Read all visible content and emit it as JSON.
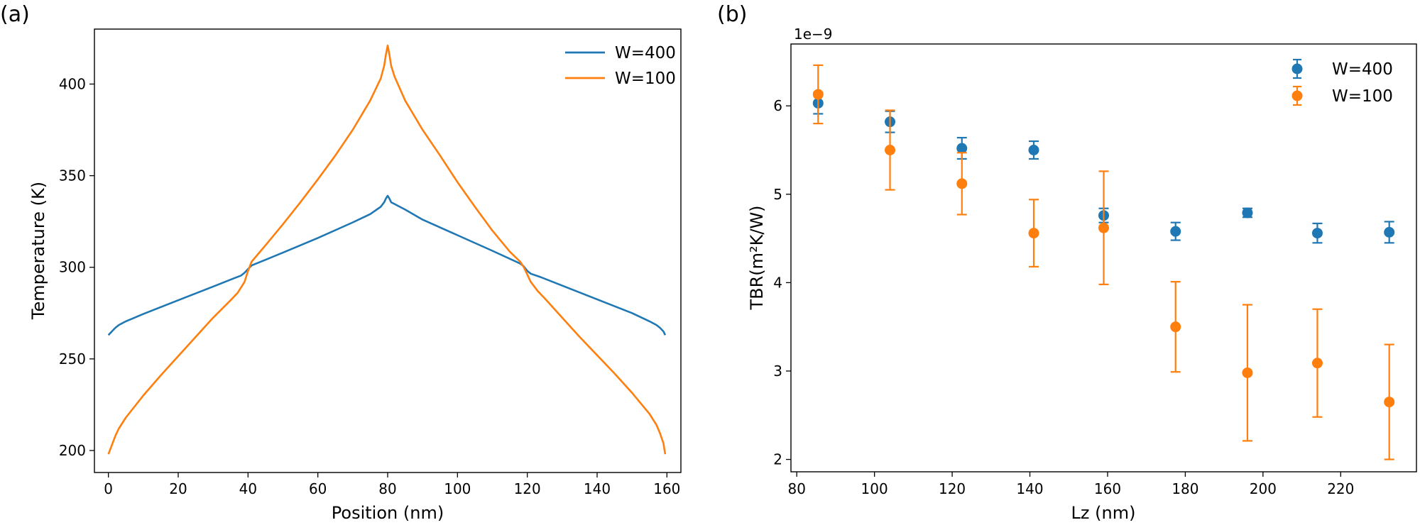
{
  "chart_data": [
    {
      "panel_label": "(a)",
      "type": "line",
      "xlabel": "Position (nm)",
      "ylabel": "Temperature (K)",
      "xlim": [
        -4,
        164
      ],
      "ylim": [
        188,
        430
      ],
      "xticks": [
        0,
        20,
        40,
        60,
        80,
        100,
        120,
        140,
        160
      ],
      "yticks": [
        200,
        250,
        300,
        350,
        400
      ],
      "grid": false,
      "legend": "top-right",
      "series": [
        {
          "name": "W=400",
          "color": "#1f77b4",
          "x": [
            0,
            1,
            2,
            3,
            5,
            10,
            20,
            30,
            36,
            38,
            39,
            40,
            41,
            44,
            50,
            60,
            70,
            75,
            78,
            79,
            79.5,
            80,
            80.5,
            81,
            82,
            85,
            90,
            100,
            110,
            118,
            119,
            120,
            121,
            124,
            130,
            140,
            150,
            155,
            157,
            158,
            159,
            159.5
          ],
          "y": [
            263,
            265,
            267,
            268.5,
            270.5,
            274.5,
            282,
            289.5,
            294,
            295.5,
            297,
            299,
            301,
            303.3,
            308,
            316,
            324.5,
            329,
            333,
            335.5,
            337.5,
            339,
            337.5,
            335.5,
            334.5,
            331.5,
            326,
            317.5,
            309,
            302,
            300.5,
            298,
            296.5,
            294.5,
            290,
            282.5,
            275,
            270.5,
            268.5,
            267,
            265,
            263
          ]
        },
        {
          "name": "W=100",
          "color": "#ff7f0e",
          "x": [
            0,
            1,
            2,
            3,
            5,
            10,
            15,
            20,
            25,
            30,
            35,
            37,
            38,
            39,
            40,
            41,
            43,
            45,
            50,
            55,
            60,
            65,
            70,
            75,
            78,
            79,
            79.5,
            80,
            80.5,
            81,
            82,
            85,
            90,
            95,
            100,
            105,
            110,
            115,
            118,
            119,
            120,
            121,
            123,
            125,
            130,
            135,
            140,
            145,
            150,
            155,
            157,
            158,
            159,
            159.5
          ],
          "y": [
            198,
            203,
            208,
            212,
            218,
            230,
            241,
            251.5,
            262,
            272.5,
            282,
            286,
            289,
            292,
            298,
            303,
            307.5,
            312,
            323.5,
            335.5,
            348,
            361,
            375,
            391,
            403,
            410,
            416,
            421,
            416,
            410,
            404,
            391,
            375,
            361,
            346.5,
            333,
            320,
            308.5,
            303,
            300,
            296,
            292,
            287,
            283,
            272.5,
            262,
            252,
            242,
            231.5,
            220,
            214,
            209.5,
            204,
            198
          ]
        }
      ]
    },
    {
      "panel_label": "(b)",
      "type": "scatter",
      "xlabel": "Lz (nm)",
      "ylabel": "TBR(m²K/W)",
      "y_offset_text": "1e−9",
      "xlim": [
        78.5,
        239.5
      ],
      "ylim": [
        1.86,
        6.7
      ],
      "xticks": [
        80,
        100,
        120,
        140,
        160,
        180,
        200,
        220
      ],
      "yticks": [
        2,
        3,
        4,
        5,
        6
      ],
      "grid": false,
      "legend": "top-right",
      "series": [
        {
          "name": "W=400",
          "color": "#1f77b4",
          "x": [
            85.5,
            104,
            122.5,
            141,
            159,
            177.5,
            196,
            214,
            232.5
          ],
          "y": [
            6.03,
            5.82,
            5.52,
            5.5,
            4.76,
            4.58,
            4.79,
            4.56,
            4.57
          ],
          "yerr": [
            0.12,
            0.12,
            0.12,
            0.1,
            0.08,
            0.1,
            0.05,
            0.11,
            0.12
          ]
        },
        {
          "name": "W=100",
          "color": "#ff7f0e",
          "x": [
            85.5,
            104,
            122.5,
            141,
            159,
            177.5,
            196,
            214,
            232.5
          ],
          "y": [
            6.13,
            5.5,
            5.12,
            4.56,
            4.62,
            3.5,
            2.98,
            3.09,
            2.65
          ],
          "yerr": [
            0.33,
            0.45,
            0.35,
            0.38,
            0.64,
            0.51,
            0.77,
            0.61,
            0.65
          ]
        }
      ]
    }
  ]
}
